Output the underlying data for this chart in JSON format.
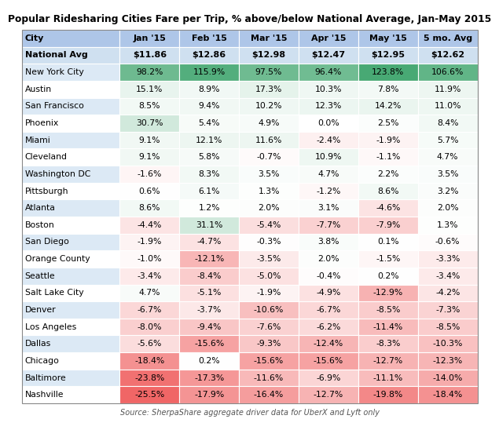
{
  "title": "Popular Ridesharing Cities Fare per Trip, % above/below National Average, Jan-May 2015",
  "source": "Source: SherpaShare aggregate driver data for UberX and Lyft only",
  "columns": [
    "City",
    "Jan '15",
    "Feb '15",
    "Mar '15",
    "Apr '15",
    "May '15",
    "5 mo. Avg"
  ],
  "national_avg": [
    "National Avg",
    "$11.86",
    "$12.86",
    "$12.98",
    "$12.47",
    "$12.95",
    "$12.62"
  ],
  "cities": [
    "New York City",
    "Austin",
    "San Francisco",
    "Phoenix",
    "Miami",
    "Cleveland",
    "Washington DC",
    "Pittsburgh",
    "Atlanta",
    "Boston",
    "San Diego",
    "Orange County",
    "Seattle",
    "Salt Lake City",
    "Denver",
    "Los Angeles",
    "Dallas",
    "Chicago",
    "Baltimore",
    "Nashville"
  ],
  "values": [
    [
      98.2,
      115.9,
      97.5,
      96.4,
      123.8,
      106.6
    ],
    [
      15.1,
      8.9,
      17.3,
      10.3,
      7.8,
      11.9
    ],
    [
      8.5,
      9.4,
      10.2,
      12.3,
      14.2,
      11.0
    ],
    [
      30.7,
      5.4,
      4.9,
      0.0,
      2.5,
      8.4
    ],
    [
      9.1,
      12.1,
      11.6,
      -2.4,
      -1.9,
      5.7
    ],
    [
      9.1,
      5.8,
      -0.7,
      10.9,
      -1.1,
      4.7
    ],
    [
      -1.6,
      8.3,
      3.5,
      4.7,
      2.2,
      3.5
    ],
    [
      0.6,
      6.1,
      1.3,
      -1.2,
      8.6,
      3.2
    ],
    [
      8.6,
      1.2,
      2.0,
      3.1,
      -4.6,
      2.0
    ],
    [
      -4.4,
      31.1,
      -5.4,
      -7.7,
      -7.9,
      1.3
    ],
    [
      -1.9,
      -4.7,
      -0.3,
      3.8,
      0.1,
      -0.6
    ],
    [
      -1.0,
      -12.1,
      -3.5,
      2.0,
      -1.5,
      -3.3
    ],
    [
      -3.4,
      -8.4,
      -5.0,
      -0.4,
      0.2,
      -3.4
    ],
    [
      4.7,
      -5.1,
      -1.9,
      -4.9,
      -12.9,
      -4.2
    ],
    [
      -6.7,
      -3.7,
      -10.6,
      -6.7,
      -8.5,
      -7.3
    ],
    [
      -8.0,
      -9.4,
      -7.6,
      -6.2,
      -11.4,
      -8.5
    ],
    [
      -5.6,
      -15.6,
      -9.3,
      -12.4,
      -8.3,
      -10.3
    ],
    [
      -18.4,
      0.2,
      -15.6,
      -15.6,
      -12.7,
      -12.3
    ],
    [
      -23.8,
      -17.3,
      -11.6,
      -6.9,
      -11.1,
      -14.0
    ],
    [
      -25.5,
      -17.9,
      -16.4,
      -12.7,
      -19.8,
      -18.4
    ]
  ],
  "display_values": [
    [
      "98.2%",
      "115.9%",
      "97.5%",
      "96.4%",
      "123.8%",
      "106.6%"
    ],
    [
      "15.1%",
      "8.9%",
      "17.3%",
      "10.3%",
      "7.8%",
      "11.9%"
    ],
    [
      "8.5%",
      "9.4%",
      "10.2%",
      "12.3%",
      "14.2%",
      "11.0%"
    ],
    [
      "30.7%",
      "5.4%",
      "4.9%",
      "0.0%",
      "2.5%",
      "8.4%"
    ],
    [
      "9.1%",
      "12.1%",
      "11.6%",
      "-2.4%",
      "-1.9%",
      "5.7%"
    ],
    [
      "9.1%",
      "5.8%",
      "-0.7%",
      "10.9%",
      "-1.1%",
      "4.7%"
    ],
    [
      "-1.6%",
      "8.3%",
      "3.5%",
      "4.7%",
      "2.2%",
      "3.5%"
    ],
    [
      "0.6%",
      "6.1%",
      "1.3%",
      "-1.2%",
      "8.6%",
      "3.2%"
    ],
    [
      "8.6%",
      "1.2%",
      "2.0%",
      "3.1%",
      "-4.6%",
      "2.0%"
    ],
    [
      "-4.4%",
      "31.1%",
      "-5.4%",
      "-7.7%",
      "-7.9%",
      "1.3%"
    ],
    [
      "-1.9%",
      "-4.7%",
      "-0.3%",
      "3.8%",
      "0.1%",
      "-0.6%"
    ],
    [
      "-1.0%",
      "-12.1%",
      "-3.5%",
      "2.0%",
      "-1.5%",
      "-3.3%"
    ],
    [
      "-3.4%",
      "-8.4%",
      "-5.0%",
      "-0.4%",
      "0.2%",
      "-3.4%"
    ],
    [
      "4.7%",
      "-5.1%",
      "-1.9%",
      "-4.9%",
      "-12.9%",
      "-4.2%"
    ],
    [
      "-6.7%",
      "-3.7%",
      "-10.6%",
      "-6.7%",
      "-8.5%",
      "-7.3%"
    ],
    [
      "-8.0%",
      "-9.4%",
      "-7.6%",
      "-6.2%",
      "-11.4%",
      "-8.5%"
    ],
    [
      "-5.6%",
      "-15.6%",
      "-9.3%",
      "-12.4%",
      "-8.3%",
      "-10.3%"
    ],
    [
      "-18.4%",
      "0.2%",
      "-15.6%",
      "-15.6%",
      "-12.7%",
      "-12.3%"
    ],
    [
      "-23.8%",
      "-17.3%",
      "-11.6%",
      "-6.9%",
      "-11.1%",
      "-14.0%"
    ],
    [
      "-25.5%",
      "-17.9%",
      "-16.4%",
      "-12.7%",
      "-19.8%",
      "-18.4%"
    ]
  ],
  "header_bg": "#aec6e8",
  "national_avg_bg": "#cfe0f0",
  "odd_row_bg": "#dce9f5",
  "even_row_bg": "#ffffff",
  "title_fontsize": 8.8,
  "header_fontsize": 8.0,
  "cell_fontsize": 7.8,
  "source_fontsize": 7.0
}
